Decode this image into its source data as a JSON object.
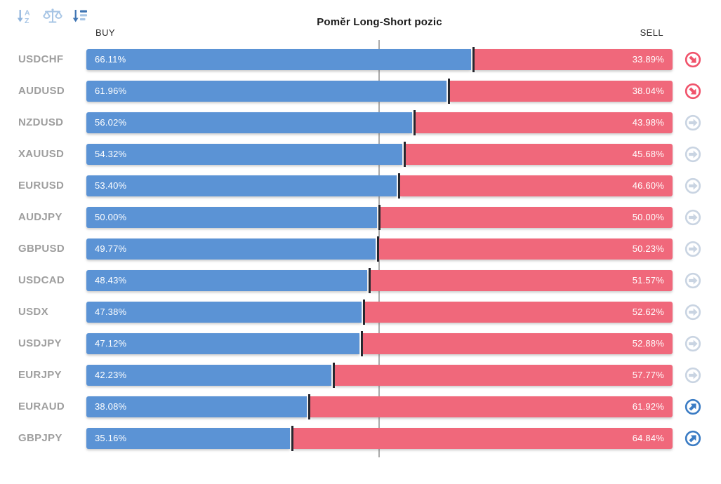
{
  "title": "Pomĕr Long-Short pozic",
  "columns": {
    "buy_header": "BUY",
    "sell_header": "SELL"
  },
  "toolbar": {
    "icons": [
      {
        "name": "sort-alphabetical-icon"
      },
      {
        "name": "balance-scale-icon"
      },
      {
        "name": "sort-amount-icon"
      }
    ]
  },
  "colors": {
    "buy_bar": "#5b93d5",
    "sell_bar": "#f0687b",
    "pair_label": "#9e9e9e",
    "gridline": "#ababab",
    "marker": "#23232b",
    "trend_down": "#f0536b",
    "trend_flat": "#c9d4e2",
    "trend_up": "#3b7cc4",
    "icon_light_blue": "#a7c5e5",
    "icon_dark_blue": "#3f75b3"
  },
  "rows": [
    {
      "pair": "USDCHF",
      "buy_label": "66.11%",
      "sell_label": "33.89%",
      "buy": 66.11,
      "sell": 33.89,
      "trend": "down"
    },
    {
      "pair": "AUDUSD",
      "buy_label": "61.96%",
      "sell_label": "38.04%",
      "buy": 61.96,
      "sell": 38.04,
      "trend": "down"
    },
    {
      "pair": "NZDUSD",
      "buy_label": "56.02%",
      "sell_label": "43.98%",
      "buy": 56.02,
      "sell": 43.98,
      "trend": "flat"
    },
    {
      "pair": "XAUUSD",
      "buy_label": "54.32%",
      "sell_label": "45.68%",
      "buy": 54.32,
      "sell": 45.68,
      "trend": "flat"
    },
    {
      "pair": "EURUSD",
      "buy_label": "53.40%",
      "sell_label": "46.60%",
      "buy": 53.4,
      "sell": 46.6,
      "trend": "flat"
    },
    {
      "pair": "AUDJPY",
      "buy_label": "50.00%",
      "sell_label": "50.00%",
      "buy": 50.0,
      "sell": 50.0,
      "trend": "flat"
    },
    {
      "pair": "GBPUSD",
      "buy_label": "49.77%",
      "sell_label": "50.23%",
      "buy": 49.77,
      "sell": 50.23,
      "trend": "flat"
    },
    {
      "pair": "USDCAD",
      "buy_label": "48.43%",
      "sell_label": "51.57%",
      "buy": 48.43,
      "sell": 51.57,
      "trend": "flat"
    },
    {
      "pair": "USDX",
      "buy_label": "47.38%",
      "sell_label": "52.62%",
      "buy": 47.38,
      "sell": 52.62,
      "trend": "flat"
    },
    {
      "pair": "USDJPY",
      "buy_label": "47.12%",
      "sell_label": "52.88%",
      "buy": 47.12,
      "sell": 52.88,
      "trend": "flat"
    },
    {
      "pair": "EURJPY",
      "buy_label": "42.23%",
      "sell_label": "57.77%",
      "buy": 42.23,
      "sell": 57.77,
      "trend": "flat"
    },
    {
      "pair": "EURAUD",
      "buy_label": "38.08%",
      "sell_label": "61.92%",
      "buy": 38.08,
      "sell": 61.92,
      "trend": "up"
    },
    {
      "pair": "GBPJPY",
      "buy_label": "35.16%",
      "sell_label": "64.84%",
      "buy": 35.16,
      "sell": 64.84,
      "trend": "up"
    }
  ],
  "chart_data": {
    "type": "bar",
    "orientation": "horizontal-stacked",
    "title": "Pomĕr Long-Short pozic",
    "categories": [
      "USDCHF",
      "AUDUSD",
      "NZDUSD",
      "XAUUSD",
      "EURUSD",
      "AUDJPY",
      "GBPUSD",
      "USDCAD",
      "USDX",
      "USDJPY",
      "EURJPY",
      "EURAUD",
      "GBPJPY"
    ],
    "series": [
      {
        "name": "BUY",
        "color": "#5b93d5",
        "values": [
          66.11,
          61.96,
          56.02,
          54.32,
          53.4,
          50.0,
          49.77,
          48.43,
          47.38,
          47.12,
          42.23,
          38.08,
          35.16
        ]
      },
      {
        "name": "SELL",
        "color": "#f0687b",
        "values": [
          33.89,
          38.04,
          43.98,
          45.68,
          46.6,
          50.0,
          50.23,
          51.57,
          52.62,
          52.88,
          57.77,
          61.92,
          64.84
        ]
      }
    ],
    "xlim": [
      0,
      100
    ],
    "center_gridline": 50,
    "grid": "single-center-line",
    "legend_position": "column-headers-top"
  }
}
